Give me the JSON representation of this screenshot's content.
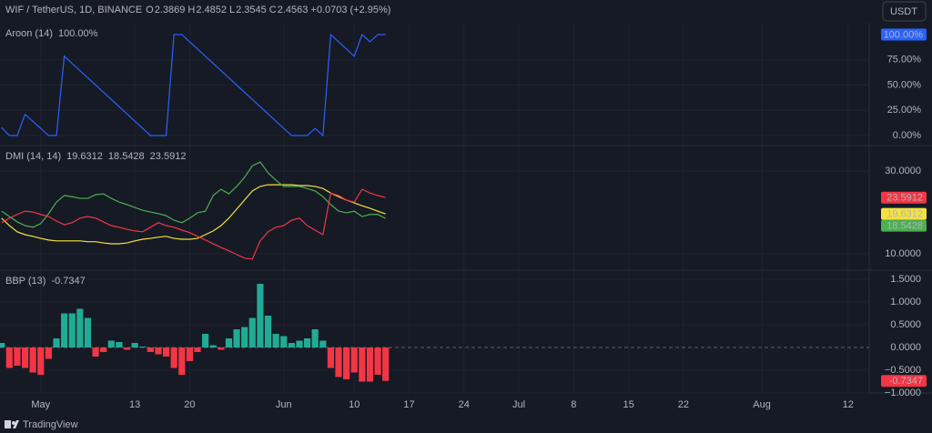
{
  "header": {
    "symbol": "WIF / TetherUS, 1D, BINANCE",
    "ohlc": [
      {
        "key": "O",
        "value": "2.3869"
      },
      {
        "key": "H",
        "value": "2.4852"
      },
      {
        "key": "L",
        "value": "2.3545"
      },
      {
        "key": "C",
        "value": "2.4563"
      }
    ],
    "change": "+0.0703 (+2.95%)",
    "currency": "USDT",
    "up_color": "#22ab94"
  },
  "footer": {
    "brand": "TradingView"
  },
  "xaxis": {
    "xlim": [
      -5.2,
      105.7
    ],
    "x": [
      -5,
      -4,
      -3,
      -2,
      -1,
      0,
      1,
      2,
      3,
      4,
      5,
      6,
      7,
      8,
      9,
      10,
      11,
      12,
      13,
      14,
      15,
      16,
      17,
      18,
      19,
      20,
      21,
      22,
      23,
      24,
      25,
      26,
      27,
      28,
      29,
      30,
      31,
      32,
      33,
      34,
      35,
      36,
      37,
      38,
      39,
      40,
      41,
      42,
      43,
      44
    ],
    "xticks": [
      {
        "value": 0,
        "label": "May"
      },
      {
        "value": 12,
        "label": "13"
      },
      {
        "value": 19,
        "label": "20"
      },
      {
        "value": 31,
        "label": "Jun"
      },
      {
        "value": 40,
        "label": "10"
      },
      {
        "value": 47,
        "label": "17"
      },
      {
        "value": 54,
        "label": "24"
      },
      {
        "value": 61,
        "label": "Jul"
      },
      {
        "value": 68,
        "label": "8"
      },
      {
        "value": 75,
        "label": "15"
      },
      {
        "value": 82,
        "label": "22"
      },
      {
        "value": 92,
        "label": "Aug"
      },
      {
        "value": 103,
        "label": "12"
      }
    ]
  },
  "chart_data": [
    {
      "type": "line",
      "title": "Aroon (14)",
      "ylim": [
        -9.9,
        111.7
      ],
      "yticks": [
        {
          "value": 0,
          "label": "0.00%"
        },
        {
          "value": 25,
          "label": "25.00%"
        },
        {
          "value": 50,
          "label": "50.00%"
        },
        {
          "value": 75,
          "label": "75.00%"
        }
      ],
      "series": [
        {
          "color": "#2962ff",
          "last_value_label": "100.00%",
          "values": [
            8,
            0,
            0,
            21,
            14,
            7,
            0,
            0,
            78.57,
            71.43,
            64.29,
            57.14,
            50,
            42.86,
            35.71,
            28.57,
            21.43,
            14.29,
            7.14,
            0,
            0,
            0,
            100,
            100,
            92.86,
            85.71,
            78.57,
            71.43,
            64.29,
            57.14,
            50,
            42.86,
            35.71,
            28.57,
            21.43,
            14.29,
            7.14,
            0,
            0,
            0,
            7.14,
            0,
            100,
            92.86,
            85.71,
            78.57,
            100,
            92.86,
            100,
            100
          ]
        }
      ]
    },
    {
      "type": "line",
      "title": "DMI (14, 14)",
      "ylim": [
        6.0,
        36.2
      ],
      "yticks": [
        {
          "value": 10,
          "label": "10.0000"
        },
        {
          "value": 30,
          "label": "30.0000"
        }
      ],
      "series": [
        {
          "color": "#f5e23c",
          "values": [
            18.6,
            16.8,
            15.3,
            14.6,
            14.2,
            13.7,
            13.3,
            13.1,
            13.1,
            13.1,
            13.1,
            12.9,
            12.9,
            12.6,
            12.4,
            12.4,
            12.6,
            13.1,
            13.5,
            13.7,
            14.0,
            14.2,
            13.7,
            13.5,
            13.5,
            13.7,
            14.6,
            15.5,
            16.8,
            18.6,
            20.8,
            23.0,
            25.2,
            26.3,
            26.7,
            26.7,
            26.7,
            26.7,
            26.5,
            26.5,
            26.3,
            25.8,
            24.7,
            23.8,
            23.0,
            22.3,
            21.6,
            21.0,
            20.3,
            19.6312
          ]
        },
        {
          "color": "#4caf50",
          "values": [
            20.3,
            19.0,
            17.7,
            16.8,
            16.4,
            17.3,
            19.7,
            22.5,
            24.1,
            23.8,
            23.4,
            23.4,
            24.3,
            24.5,
            23.4,
            22.5,
            21.9,
            21.2,
            20.5,
            20.1,
            19.7,
            19.2,
            18.1,
            17.5,
            18.6,
            19.9,
            20.3,
            24.1,
            25.6,
            24.5,
            26.3,
            28.5,
            31.3,
            32.2,
            29.6,
            27.8,
            26.3,
            26.3,
            26.3,
            25.8,
            25.2,
            23.8,
            21.9,
            20.3,
            19.9,
            20.3,
            19.0,
            19.5,
            19.5,
            18.5428
          ]
        },
        {
          "color": "#f23645",
          "values": [
            17.5,
            18.6,
            19.5,
            20.3,
            20.1,
            19.5,
            19.0,
            17.9,
            17.0,
            17.5,
            18.6,
            19.0,
            18.6,
            17.7,
            16.8,
            16.4,
            15.9,
            15.5,
            15.3,
            16.4,
            17.5,
            16.8,
            16.4,
            15.7,
            15.1,
            14.2,
            13.3,
            12.4,
            11.5,
            10.7,
            9.8,
            8.9,
            8.7,
            13.1,
            15.3,
            16.4,
            16.8,
            18.1,
            18.6,
            16.8,
            15.7,
            14.6,
            24.7,
            24.1,
            23.0,
            22.5,
            25.6,
            24.7,
            24.1,
            23.5912
          ]
        }
      ]
    },
    {
      "type": "bar",
      "title": "BBP (13)",
      "ylim": [
        -1.0,
        1.7
      ],
      "yticks": [
        {
          "value": 1.5,
          "label": "1.5000"
        },
        {
          "value": 1,
          "label": "1.0000"
        },
        {
          "value": 0.5,
          "label": "0.5000"
        },
        {
          "value": 0,
          "label": "0.0000"
        },
        {
          "value": -0.5,
          "label": "−0.5000"
        },
        {
          "value": -1,
          "label": "−1.0000"
        }
      ],
      "colors": {
        "up": "#22ab94",
        "down": "#f23645"
      },
      "values": [
        0.1,
        -0.45,
        -0.4,
        -0.45,
        -0.55,
        -0.6,
        -0.25,
        0.2,
        0.75,
        0.75,
        0.85,
        0.65,
        -0.2,
        -0.1,
        0.15,
        0.12,
        -0.05,
        0.1,
        0.02,
        -0.1,
        -0.15,
        -0.2,
        -0.45,
        -0.6,
        -0.3,
        -0.1,
        0.3,
        0.05,
        -0.05,
        0.2,
        0.4,
        0.45,
        0.65,
        1.4,
        0.7,
        0.3,
        0.25,
        0.1,
        0.15,
        0.2,
        0.4,
        0.15,
        -0.45,
        -0.65,
        -0.7,
        -0.55,
        -0.75,
        -0.75,
        -0.6,
        -0.7347
      ]
    }
  ]
}
